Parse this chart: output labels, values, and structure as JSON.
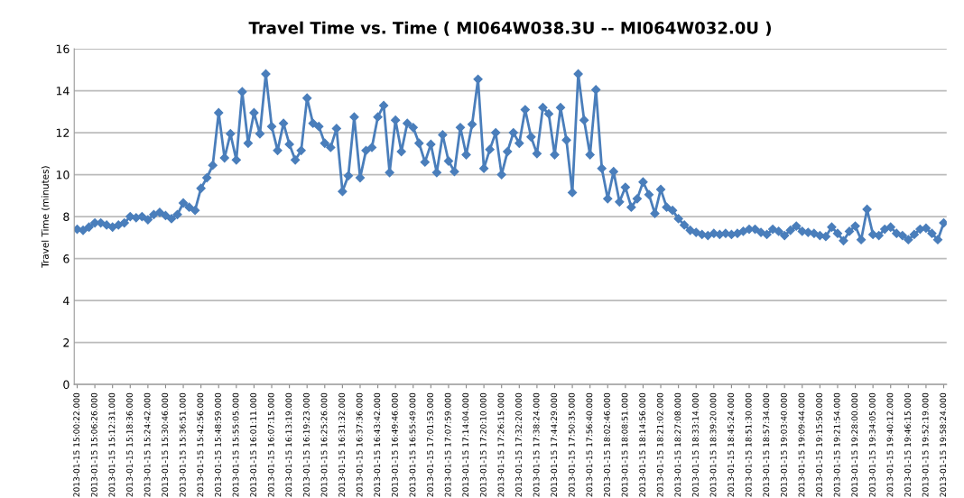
{
  "chart_data": {
    "type": "line",
    "title": "Travel Time vs. Time ( MI064W038.3U -- MI064W032.0U )",
    "ylabel": "Travel Time (minutes)",
    "categories": [
      "2013-01-15 15:00:22.000",
      null,
      null,
      "2013-01-15 15:06:26.000",
      null,
      null,
      "2013-01-15 15:12:31.000",
      null,
      null,
      "2013-01-15 15:18:36.000",
      null,
      null,
      "2013-01-15 15:24:42.000",
      null,
      null,
      "2013-01-15 15:30:46.000",
      null,
      null,
      "2013-01-15 15:36:51.000",
      null,
      null,
      "2013-01-15 15:42:56.000",
      null,
      null,
      "2013-01-15 15:48:59.000",
      null,
      null,
      "2013-01-15 15:55:05.000",
      null,
      null,
      "2013-01-15 16:01:11.000",
      null,
      null,
      "2013-01-15 16:07:15.000",
      null,
      null,
      "2013-01-15 16:13:19.000",
      null,
      null,
      "2013-01-15 16:19:23.000",
      null,
      null,
      "2013-01-15 16:25:26.000",
      null,
      null,
      "2013-01-15 16:31:32.000",
      null,
      null,
      "2013-01-15 16:37:36.000",
      null,
      null,
      "2013-01-15 16:43:42.000",
      null,
      null,
      "2013-01-15 16:49:46.000",
      null,
      null,
      "2013-01-15 16:55:49.000",
      null,
      null,
      "2013-01-15 17:01:53.000",
      null,
      null,
      "2013-01-15 17:07:59.000",
      null,
      null,
      "2013-01-15 17:14:04.000",
      null,
      null,
      "2013-01-15 17:20:10.000",
      null,
      null,
      "2013-01-15 17:26:15.000",
      null,
      null,
      "2013-01-15 17:32:20.000",
      null,
      null,
      "2013-01-15 17:38:24.000",
      null,
      null,
      "2013-01-15 17:44:29.000",
      null,
      null,
      "2013-01-15 17:50:35.000",
      null,
      null,
      "2013-01-15 17:56:40.000",
      null,
      null,
      "2013-01-15 18:02:46.000",
      null,
      null,
      "2013-01-15 18:08:51.000",
      null,
      null,
      "2013-01-15 18:14:56.000",
      null,
      null,
      "2013-01-15 18:21:02.000",
      null,
      null,
      "2013-01-15 18:27:08.000",
      null,
      null,
      "2013-01-15 18:33:14.000",
      null,
      null,
      "2013-01-15 18:39:20.000",
      null,
      null,
      "2013-01-15 18:45:24.000",
      null,
      null,
      "2013-01-15 18:51:30.000",
      null,
      null,
      "2013-01-15 18:57:34.000",
      null,
      null,
      "2013-01-15 19:03:40.000",
      null,
      null,
      "2013-01-15 19:09:44.000",
      null,
      null,
      "2013-01-15 19:15:50.000",
      null,
      null,
      "2013-01-15 19:21:54.000",
      null,
      null,
      "2013-01-15 19:28:00.000",
      null,
      null,
      "2013-01-15 19:34:05.000",
      null,
      null,
      "2013-01-15 19:40:12.000",
      null,
      null,
      "2013-01-15 19:46:15.000",
      null,
      null,
      "2013-01-15 19:52:19.000",
      null,
      null,
      "2013-01-15 19:58:24.000"
    ],
    "series": [
      {
        "color": "#4a7ebb",
        "values": [
          7.4,
          7.35,
          7.5,
          7.7,
          7.7,
          7.6,
          7.5,
          7.6,
          7.7,
          8.0,
          7.95,
          8.0,
          7.85,
          8.1,
          8.2,
          8.05,
          7.9,
          8.1,
          8.65,
          8.45,
          8.3,
          9.35,
          9.85,
          10.45,
          12.95,
          10.8,
          11.95,
          10.7,
          13.95,
          11.5,
          12.95,
          11.95,
          14.8,
          12.3,
          11.15,
          12.45,
          11.45,
          10.7,
          11.15,
          13.65,
          12.45,
          12.3,
          11.5,
          11.3,
          12.2,
          9.2,
          9.95,
          12.75,
          9.85,
          11.15,
          11.3,
          12.75,
          13.3,
          10.1,
          12.6,
          11.1,
          12.45,
          12.25,
          11.5,
          10.6,
          11.45,
          10.1,
          11.9,
          10.65,
          10.15,
          12.25,
          10.95,
          12.4,
          14.55,
          10.3,
          11.2,
          12.0,
          10.0,
          11.1,
          12.0,
          11.5,
          13.1,
          11.8,
          11.0,
          13.2,
          12.9,
          10.95,
          13.2,
          11.65,
          9.15,
          14.8,
          12.6,
          10.95,
          14.05,
          10.3,
          8.85,
          10.15,
          8.7,
          9.4,
          8.45,
          8.85,
          9.65,
          9.05,
          8.15,
          9.3,
          8.45,
          8.3,
          7.9,
          7.6,
          7.35,
          7.25,
          7.15,
          7.1,
          7.2,
          7.15,
          7.2,
          7.15,
          7.2,
          7.3,
          7.4,
          7.4,
          7.25,
          7.15,
          7.4,
          7.3,
          7.1,
          7.35,
          7.55,
          7.3,
          7.25,
          7.2,
          7.1,
          7.05,
          7.5,
          7.2,
          6.85,
          7.3,
          7.55,
          6.9,
          8.35,
          7.15,
          7.1,
          7.4,
          7.5,
          7.2,
          7.1,
          6.9,
          7.15,
          7.4,
          7.45,
          7.2,
          6.9,
          7.7
        ]
      }
    ],
    "ylim": [
      0,
      16
    ],
    "yticks": [
      0,
      2,
      4,
      6,
      8,
      10,
      12,
      14,
      16
    ],
    "grid": "y",
    "marker": "diamond",
    "line_style": "solid"
  }
}
